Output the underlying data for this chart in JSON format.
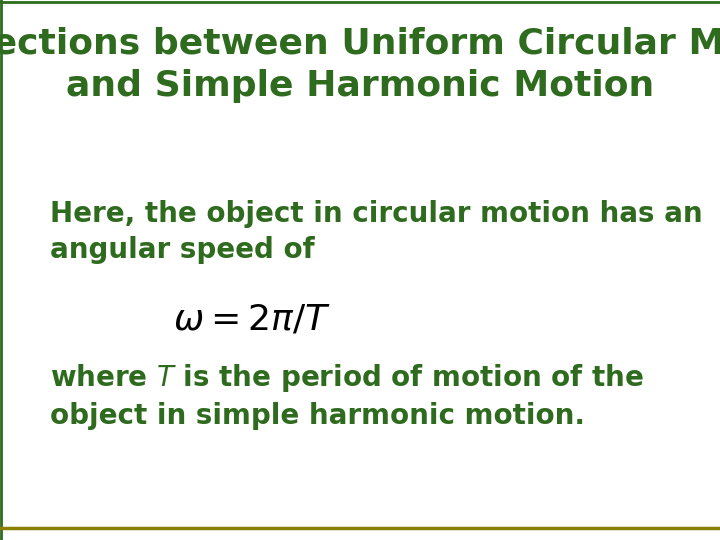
{
  "title_line1": "Connections between Uniform Circular Motion",
  "title_line2": "and Simple Harmonic Motion",
  "title_color": "#2E6B1E",
  "title_fontsize": 26,
  "body_text1_line1": "Here, the object in circular motion has an",
  "body_text1_line2": "angular speed of",
  "body_text2_line1": "where $T$ is the period of motion of the",
  "body_text2_line2": "object in simple harmonic motion.",
  "body_color": "#2E6B1E",
  "body_fontsize": 20,
  "equation": "$\\omega = 2\\pi/T$",
  "equation_color": "#000000",
  "equation_fontsize": 26,
  "bg_color": "#FFFFFF",
  "top_border_color": "#2E6B1E",
  "bottom_border_color": "#8B8000"
}
